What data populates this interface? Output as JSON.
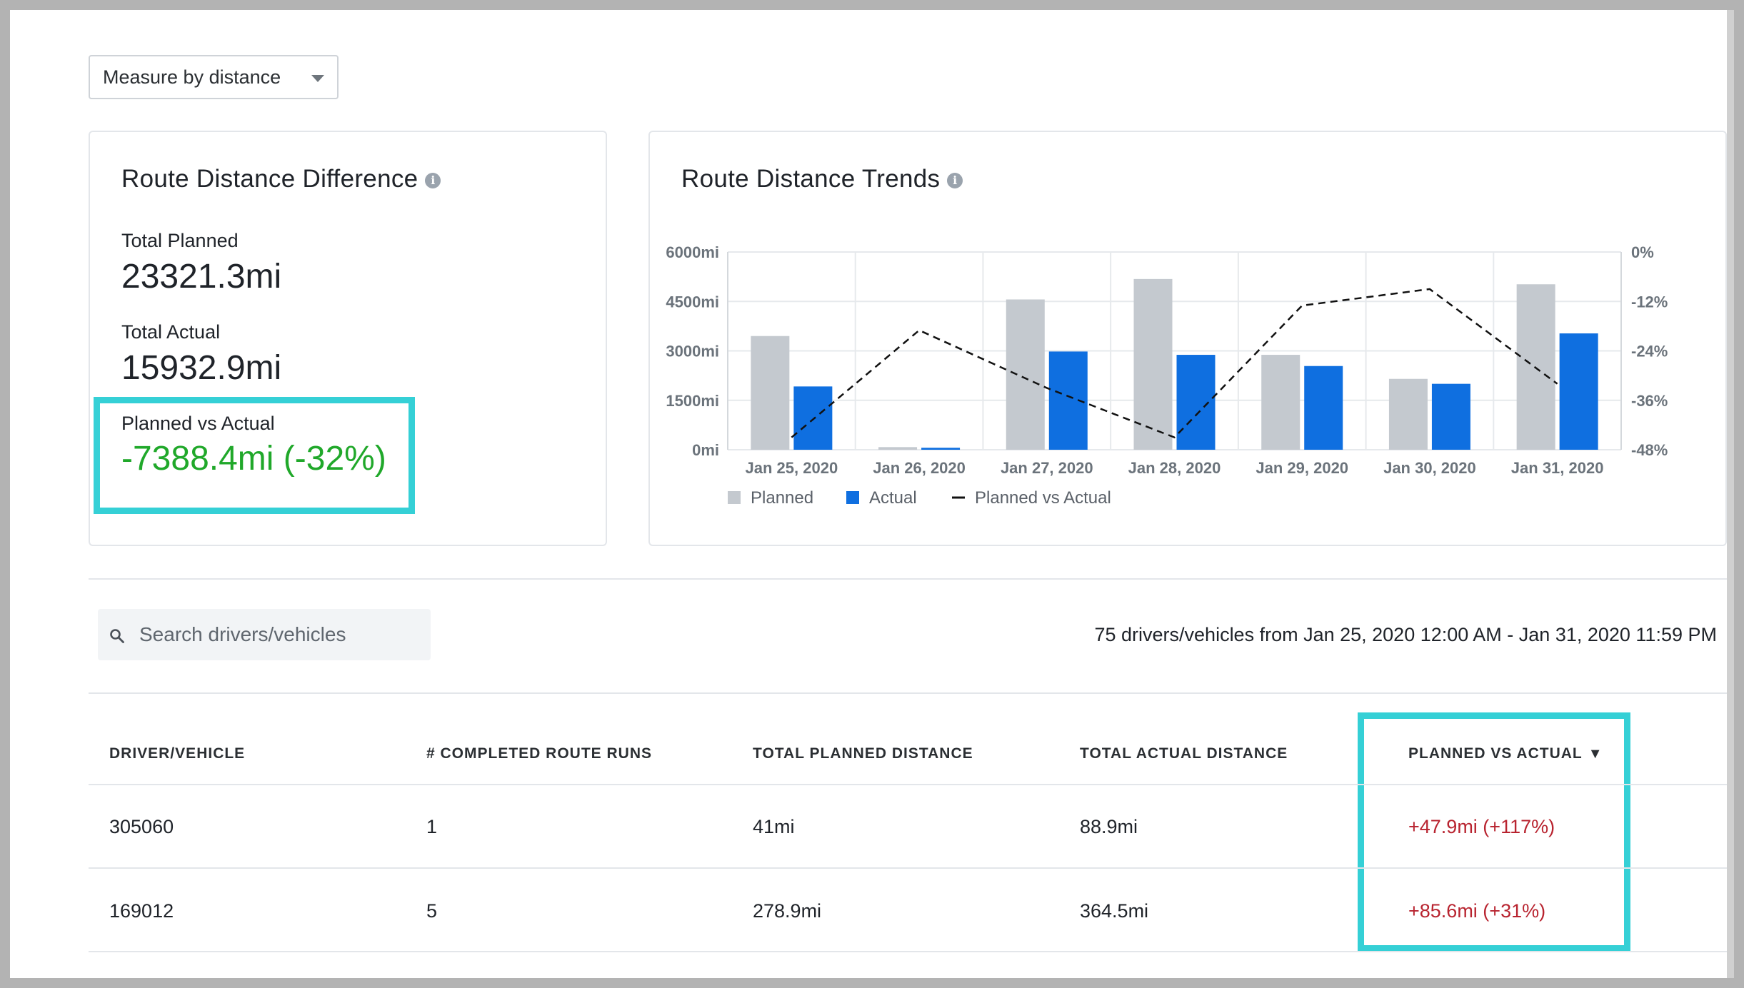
{
  "measure_dropdown": {
    "selected": "Measure by distance"
  },
  "difference_card": {
    "title": "Route Distance Difference",
    "total_planned_label": "Total Planned",
    "total_planned_value": "23321.3mi",
    "total_actual_label": "Total Actual",
    "total_actual_value": "15932.9mi",
    "planned_vs_actual_label": "Planned vs Actual",
    "planned_vs_actual_value": "-7388.4mi (-32%)"
  },
  "trends_card": {
    "title": "Route Distance Trends"
  },
  "chart_data": {
    "type": "bar",
    "categories": [
      "Jan 25, 2020",
      "Jan 26, 2020",
      "Jan 27, 2020",
      "Jan 28, 2020",
      "Jan 29, 2020",
      "Jan 30, 2020",
      "Jan 31, 2020"
    ],
    "series": [
      {
        "name": "Planned",
        "type": "bar",
        "axis": "left",
        "color": "#c4c9cf",
        "values": [
          3450,
          80,
          4560,
          5180,
          2880,
          2150,
          5020
        ]
      },
      {
        "name": "Actual",
        "type": "bar",
        "axis": "left",
        "color": "#0f6fe0",
        "values": [
          1920,
          60,
          2980,
          2880,
          2540,
          2000,
          3530
        ]
      },
      {
        "name": "Planned vs Actual",
        "type": "line",
        "axis": "right",
        "color": "#111111",
        "dashed": true,
        "values": [
          -45,
          -19,
          -33,
          -45,
          -13,
          -9,
          -32
        ]
      }
    ],
    "left_axis": {
      "ticks": [
        "6000mi",
        "4500mi",
        "3000mi",
        "1500mi",
        "0mi"
      ],
      "tick_values": [
        6000,
        4500,
        3000,
        1500,
        0
      ],
      "ylim": [
        0,
        6000
      ]
    },
    "right_axis": {
      "ticks": [
        "0%",
        "-12%",
        "-24%",
        "-36%",
        "-48%"
      ],
      "tick_values": [
        0,
        -12,
        -24,
        -36,
        -48
      ],
      "ylim": [
        -48,
        0
      ]
    },
    "grid": true,
    "legend_position": "bottom-left"
  },
  "search": {
    "placeholder": "Search drivers/vehicles"
  },
  "summary_text": "75 drivers/vehicles from Jan 25, 2020 12:00 AM - Jan 31, 2020 11:59 PM",
  "table": {
    "headers": [
      "DRIVER/VEHICLE",
      "# COMPLETED ROUTE RUNS",
      "TOTAL PLANNED DISTANCE",
      "TOTAL ACTUAL DISTANCE",
      "PLANNED VS ACTUAL"
    ],
    "sort_indicator": "▼",
    "rows": [
      [
        "305060",
        "1",
        "41mi",
        "88.9mi",
        "+47.9mi (+117%)"
      ],
      [
        "169012",
        "5",
        "278.9mi",
        "364.5mi",
        "+85.6mi (+31%)"
      ]
    ]
  }
}
